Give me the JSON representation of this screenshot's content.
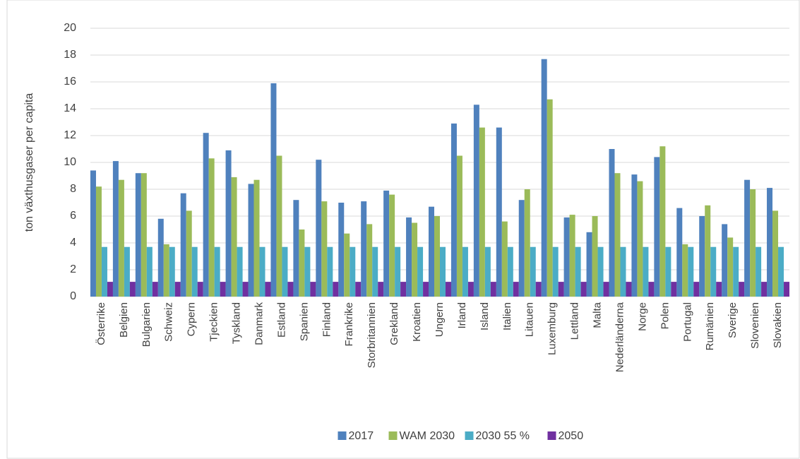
{
  "chart_data": {
    "type": "bar",
    "y_label": "ton växthusgaser per capita",
    "categories": [
      "Österrike",
      "Belgien",
      "Bulgarien",
      "Schweiz",
      "Cypern",
      "Tjeckien",
      "Tyskland",
      "Danmark",
      "Estland",
      "Spanien",
      "Finland",
      "Frankrike",
      "Storbritannien",
      "Grekland",
      "Kroatien",
      "Ungern",
      "Irland",
      "Island",
      "Italien",
      "Litauen",
      "Luxemburg",
      "Lettland",
      "Malta",
      "Nederländerna",
      "Norge",
      "Polen",
      "Portugal",
      "Rumänien",
      "Sverige",
      "Slovenien",
      "Slovakien"
    ],
    "series": [
      {
        "name": "2017",
        "color": "#4f81bd",
        "values": [
          9.4,
          10.1,
          9.2,
          5.8,
          7.7,
          12.2,
          10.9,
          8.4,
          15.9,
          7.2,
          10.2,
          7.0,
          7.1,
          7.9,
          5.9,
          6.7,
          12.9,
          14.3,
          12.6,
          7.2,
          17.7,
          5.9,
          4.8,
          11.0,
          9.1,
          10.4,
          6.6,
          6.0,
          5.4,
          8.7,
          8.1
        ]
      },
      {
        "name": "WAM 2030",
        "color": "#9bbb59",
        "values": [
          8.2,
          8.7,
          9.2,
          3.9,
          6.4,
          10.3,
          8.9,
          8.7,
          10.5,
          5.0,
          7.1,
          4.7,
          5.4,
          7.6,
          5.5,
          6.0,
          10.5,
          12.6,
          5.6,
          8.0,
          14.7,
          6.1,
          6.0,
          9.2,
          8.6,
          11.2,
          3.9,
          6.8,
          4.4,
          8.0,
          6.4
        ]
      },
      {
        "name": "2030 55 %",
        "color": "#4bacc6",
        "values": [
          3.7,
          3.7,
          3.7,
          3.7,
          3.7,
          3.7,
          3.7,
          3.7,
          3.7,
          3.7,
          3.7,
          3.7,
          3.7,
          3.7,
          3.7,
          3.7,
          3.7,
          3.7,
          3.7,
          3.7,
          3.7,
          3.7,
          3.7,
          3.7,
          3.7,
          3.7,
          3.7,
          3.7,
          3.7,
          3.7,
          3.7
        ]
      },
      {
        "name": "2050",
        "color": "#7030a0",
        "values": [
          1.1,
          1.1,
          1.1,
          1.1,
          1.1,
          1.1,
          1.1,
          1.1,
          1.1,
          1.1,
          1.1,
          1.1,
          1.1,
          1.1,
          1.1,
          1.1,
          1.1,
          1.1,
          1.1,
          1.1,
          1.1,
          1.1,
          1.1,
          1.1,
          1.1,
          1.1,
          1.1,
          1.1,
          1.1,
          1.1,
          1.1
        ]
      }
    ],
    "ylim": [
      0,
      20
    ],
    "yticks": [
      0,
      2,
      4,
      6,
      8,
      10,
      12,
      14,
      16,
      18,
      20
    ],
    "grid": true,
    "legend": "bottom"
  }
}
